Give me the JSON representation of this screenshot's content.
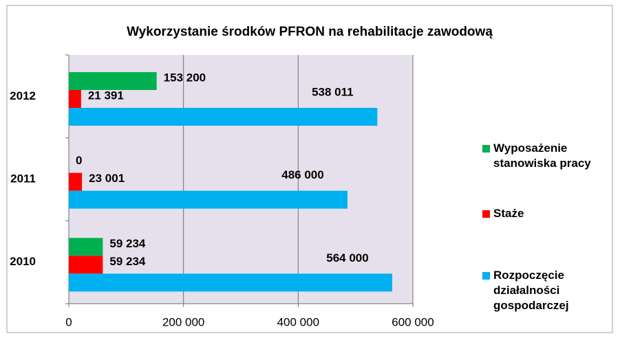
{
  "chart_data": {
    "type": "bar",
    "orientation": "horizontal",
    "title": "Wykorzystanie środków PFRON na rehabilitacje zawodową",
    "categories": [
      "2012",
      "2011",
      "2010"
    ],
    "series": [
      {
        "name": "Wyposażenie stanowiska pracy",
        "color": "#00b050",
        "values": [
          153200,
          0,
          59234
        ],
        "value_labels": [
          "153 200",
          "0",
          "59 234"
        ]
      },
      {
        "name": "Staże",
        "color": "#ff0000",
        "values": [
          21391,
          23001,
          59234
        ],
        "value_labels": [
          "21 391",
          "23 001",
          "59 234"
        ]
      },
      {
        "name": "Rozpoczęcie działalności gospodarczej",
        "color": "#00b0f0",
        "values": [
          538011,
          486000,
          564000
        ],
        "value_labels": [
          "538 011",
          "486 000",
          "564 000"
        ]
      }
    ],
    "xlim": [
      0,
      600000
    ],
    "xticks": [
      0,
      {
        "value": 200000,
        "label": "200 000"
      },
      {
        "value": 400000,
        "label": "400 000"
      },
      {
        "value": 600000,
        "label": "600 000"
      }
    ],
    "grid": true,
    "legend": "right"
  }
}
